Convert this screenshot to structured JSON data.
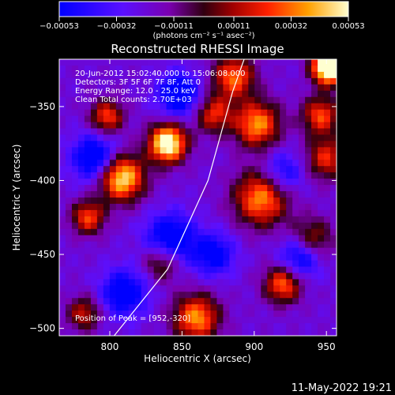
{
  "chart_data": {
    "type": "heatmap",
    "title": "Reconstructed RHESSI Image",
    "xlabel": "Heliocentric X (arcsec)",
    "ylabel": "Heliocentric Y (arcsec)",
    "xlim": [
      765,
      957
    ],
    "ylim": [
      -505,
      -318
    ],
    "x_ticks": [
      800,
      850,
      900,
      950
    ],
    "x_tick_labels": [
      "800",
      "850",
      "900",
      "950"
    ],
    "y_ticks": [
      -350,
      -400,
      -450,
      -500
    ],
    "y_tick_labels": [
      "−350",
      "−400",
      "−450",
      "−500"
    ],
    "colorbar": {
      "range": [
        -0.00053,
        0.00053
      ],
      "ticks": [
        -0.00053,
        -0.00032,
        -0.00011,
        0.00011,
        0.00032,
        0.00053
      ],
      "tick_labels": [
        "−0.00053",
        "−0.00032",
        "−0.00011",
        "0.00011",
        "0.00032",
        "0.00053"
      ],
      "unit_label": "(photons cm⁻² s⁻¹ asec⁻²)"
    },
    "info_lines": [
      "20-Jun-2012 15:02:40.000 to 15:06:08.000",
      "Detectors: 3F 5F 6F 7F 8F, Att 0",
      "Energy Range: 12.0 - 25.0 keV",
      "Clean     Total counts: 2.70E+03"
    ],
    "peak_label": "Position of Peak = [952,-320]",
    "peak_position": [
      952,
      -320
    ],
    "limb_points": [
      [
        803,
        -505
      ],
      [
        840,
        -460
      ],
      [
        868,
        -400
      ],
      [
        885,
        -340
      ],
      [
        893,
        -318
      ]
    ],
    "sources": [
      {
        "x": 952,
        "y": -323,
        "amp": 1.0,
        "sig": 8
      },
      {
        "x": 886,
        "y": -330,
        "amp": 0.5,
        "sig": 10
      },
      {
        "x": 840,
        "y": -375,
        "amp": 0.8,
        "sig": 9
      },
      {
        "x": 798,
        "y": -357,
        "amp": 0.45,
        "sig": 8
      },
      {
        "x": 808,
        "y": -398,
        "amp": 0.7,
        "sig": 11
      },
      {
        "x": 902,
        "y": -362,
        "amp": 0.55,
        "sig": 11
      },
      {
        "x": 905,
        "y": -412,
        "amp": 0.55,
        "sig": 13
      },
      {
        "x": 946,
        "y": -356,
        "amp": 0.45,
        "sig": 9
      },
      {
        "x": 940,
        "y": -440,
        "amp": 0.35,
        "sig": 10
      },
      {
        "x": 920,
        "y": -470,
        "amp": 0.5,
        "sig": 9
      },
      {
        "x": 785,
        "y": -425,
        "amp": 0.45,
        "sig": 8
      },
      {
        "x": 860,
        "y": -493,
        "amp": 0.55,
        "sig": 11
      },
      {
        "x": 836,
        "y": -455,
        "amp": 0.35,
        "sig": 9
      },
      {
        "x": 782,
        "y": -490,
        "amp": 0.35,
        "sig": 8
      },
      {
        "x": 872,
        "y": -355,
        "amp": 0.4,
        "sig": 9
      },
      {
        "x": 950,
        "y": -385,
        "amp": 0.4,
        "sig": 10
      }
    ],
    "holes": [
      {
        "x": 848,
        "y": -342,
        "amp": 0.45,
        "sig": 10
      },
      {
        "x": 790,
        "y": -385,
        "amp": 0.45,
        "sig": 11
      },
      {
        "x": 842,
        "y": -440,
        "amp": 0.45,
        "sig": 12
      },
      {
        "x": 810,
        "y": -476,
        "amp": 0.4,
        "sig": 11
      },
      {
        "x": 932,
        "y": -452,
        "amp": 0.4,
        "sig": 10
      },
      {
        "x": 872,
        "y": -450,
        "amp": 0.35,
        "sig": 10
      },
      {
        "x": 920,
        "y": -395,
        "amp": 0.3,
        "sig": 10
      }
    ],
    "grid": false,
    "legend": "none"
  },
  "footer_timestamp": "11-May-2022 19:21"
}
